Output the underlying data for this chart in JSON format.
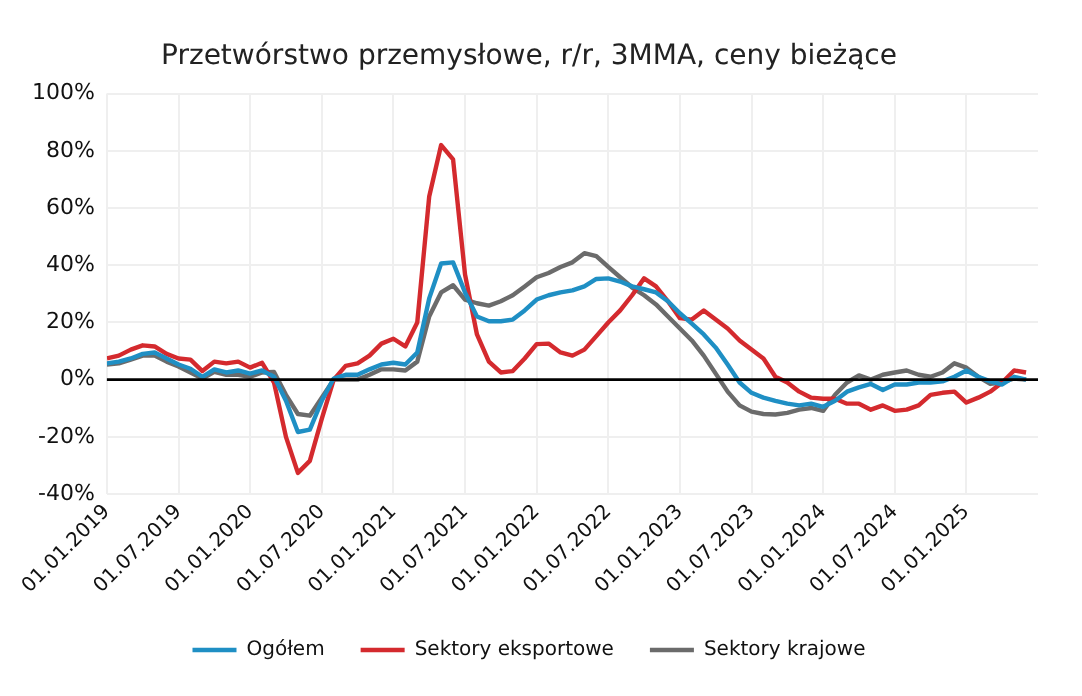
{
  "chart_data": {
    "type": "line",
    "title": "Przetwórstwo przemysłowe, r/r, 3MMA, ceny bieżące",
    "x": [
      "2019-01",
      "2019-02",
      "2019-03",
      "2019-04",
      "2019-05",
      "2019-06",
      "2019-07",
      "2019-08",
      "2019-09",
      "2019-10",
      "2019-11",
      "2019-12",
      "2020-01",
      "2020-02",
      "2020-03",
      "2020-04",
      "2020-05",
      "2020-06",
      "2020-07",
      "2020-08",
      "2020-09",
      "2020-10",
      "2020-11",
      "2020-12",
      "2021-01",
      "2021-02",
      "2021-03",
      "2021-04",
      "2021-05",
      "2021-06",
      "2021-07",
      "2021-08",
      "2021-09",
      "2021-10",
      "2021-11",
      "2021-12",
      "2022-01",
      "2022-02",
      "2022-03",
      "2022-04",
      "2022-05",
      "2022-06",
      "2022-07",
      "2022-08",
      "2022-09",
      "2022-10",
      "2022-11",
      "2022-12",
      "2023-01",
      "2023-02",
      "2023-03",
      "2023-04",
      "2023-05",
      "2023-06",
      "2023-07",
      "2023-08",
      "2023-09",
      "2023-10",
      "2023-11",
      "2023-12",
      "2024-01",
      "2024-02",
      "2024-03",
      "2024-04",
      "2024-05",
      "2024-06",
      "2024-07",
      "2024-08",
      "2024-09",
      "2024-10",
      "2024-11",
      "2024-12",
      "2025-01",
      "2025-02",
      "2025-03",
      "2025-04",
      "2025-05",
      "2025-06"
    ],
    "series": [
      {
        "name": "Ogółem",
        "color": "#1f8fc4",
        "values": [
          5.7,
          6.3,
          7.4,
          9,
          9.5,
          7.4,
          5.3,
          3.8,
          1,
          3.6,
          2.5,
          3.2,
          2.1,
          3.2,
          1,
          -7.4,
          -18.3,
          -17.5,
          -7.4,
          0.4,
          1.7,
          1.7,
          3.6,
          5.3,
          5.9,
          5.3,
          9.5,
          28.4,
          40.6,
          41,
          30.5,
          22.1,
          20.4,
          20.4,
          21,
          24.2,
          28,
          29.5,
          30.5,
          31.2,
          32.6,
          35.2,
          35.4,
          34.3,
          32.6,
          31.6,
          30.5,
          27.4,
          23.2,
          19.6,
          15.8,
          11.2,
          5.3,
          -1,
          -4.6,
          -6.3,
          -7.4,
          -8.4,
          -9,
          -8.4,
          -9.5,
          -7.4,
          -4.2,
          -2.7,
          -1.5,
          -3.6,
          -1.7,
          -1.7,
          -1,
          -1,
          -0.6,
          1,
          3.2,
          1,
          -0.6,
          -1.7,
          1,
          0
        ]
      },
      {
        "name": "Sektory eksportowe",
        "color": "#d42a2e",
        "values": [
          7.4,
          8.4,
          10.5,
          12,
          11.6,
          9,
          7.4,
          7,
          3,
          6.3,
          5.7,
          6.3,
          4.2,
          5.9,
          -1,
          -20,
          -32.6,
          -28.4,
          -13.7,
          0,
          4.8,
          5.7,
          8.4,
          12.6,
          14.3,
          11.6,
          20,
          64,
          82,
          77,
          36.8,
          15.8,
          6.3,
          2.5,
          3,
          7.4,
          12.4,
          12.6,
          9.5,
          8.4,
          10.5,
          15.2,
          20,
          24.2,
          29.5,
          35.4,
          32.6,
          27.4,
          21.5,
          21,
          24.2,
          21,
          17.9,
          13.7,
          10.5,
          7.4,
          1,
          -1,
          -4.2,
          -6.3,
          -6.7,
          -6.7,
          -8.4,
          -8.4,
          -10.5,
          -9,
          -10.9,
          -10.5,
          -9,
          -5.3,
          -4.6,
          -4.2,
          -8,
          -6.3,
          -4.2,
          -1,
          3.2,
          2.5
        ]
      },
      {
        "name": "Sektory krajowe",
        "color": "#6b6b6b",
        "values": [
          5.3,
          5.7,
          7,
          8.4,
          8.4,
          6.3,
          4.6,
          2.5,
          0.4,
          2.7,
          1.7,
          1.7,
          1,
          2.5,
          2.7,
          -5.3,
          -12,
          -12.6,
          -6.3,
          0,
          0,
          0,
          1.7,
          3.6,
          3.6,
          3.2,
          6.3,
          22.1,
          30.5,
          33,
          28,
          26.7,
          25.9,
          27.4,
          29.5,
          32.6,
          35.8,
          37.3,
          39.4,
          41,
          44.2,
          43.2,
          39.4,
          35.8,
          32.2,
          29.5,
          26.3,
          22.1,
          17.9,
          13.7,
          8.4,
          2.1,
          -4.2,
          -9,
          -11.2,
          -12,
          -12.2,
          -11.6,
          -10.5,
          -9.9,
          -10.9,
          -5.3,
          -1,
          1.5,
          0,
          1.7,
          2.5,
          3.2,
          1.7,
          1,
          2.5,
          5.7,
          4.2,
          1,
          -1.5,
          -1,
          0.4,
          0
        ]
      }
    ],
    "xlim": [
      "2019-01",
      "2025-07"
    ],
    "xticks": [
      {
        "value": "2019-01",
        "label": "01.01.2019"
      },
      {
        "value": "2019-07",
        "label": "01.07.2019"
      },
      {
        "value": "2020-01",
        "label": "01.01.2020"
      },
      {
        "value": "2020-07",
        "label": "01.07.2020"
      },
      {
        "value": "2021-01",
        "label": "01.01.2021"
      },
      {
        "value": "2021-07",
        "label": "01.07.2021"
      },
      {
        "value": "2022-01",
        "label": "01.01.2022"
      },
      {
        "value": "2022-07",
        "label": "01.07.2022"
      },
      {
        "value": "2023-01",
        "label": "01.01.2023"
      },
      {
        "value": "2023-07",
        "label": "01.07.2023"
      },
      {
        "value": "2024-01",
        "label": "01.01.2024"
      },
      {
        "value": "2024-07",
        "label": "01.07.2024"
      },
      {
        "value": "2025-01",
        "label": "01.01.2025"
      }
    ],
    "ylim": [
      -40,
      100
    ],
    "yticks": [
      {
        "value": -40,
        "label": "-40%"
      },
      {
        "value": -20,
        "label": "-20%"
      },
      {
        "value": 0,
        "label": "0%"
      },
      {
        "value": 20,
        "label": "20%"
      },
      {
        "value": 40,
        "label": "40%"
      },
      {
        "value": 60,
        "label": "60%"
      },
      {
        "value": 80,
        "label": "80%"
      },
      {
        "value": 100,
        "label": "100%"
      }
    ],
    "ref_lines": [
      {
        "axis": "y",
        "value": 0,
        "color": "#000000"
      }
    ],
    "grid": true,
    "legend": "bottom",
    "marker": "none",
    "line_style": "solid"
  }
}
